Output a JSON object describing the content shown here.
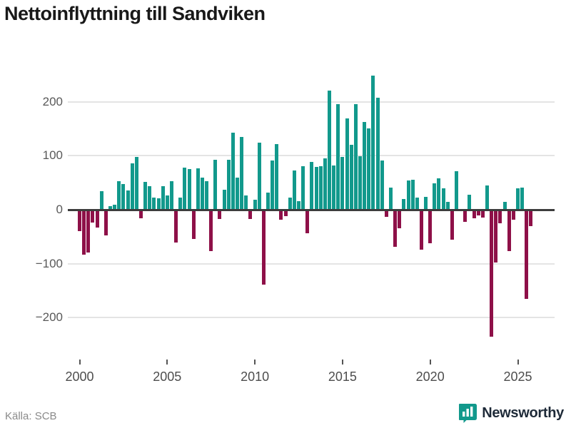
{
  "header": {
    "title": "Nettoinflyttning till Sandviken"
  },
  "footer": {
    "source": "Källa: SCB",
    "brand": "Newsworthy"
  },
  "chart_data": {
    "type": "bar",
    "title": "Nettoinflyttning till Sandviken",
    "xlabel": "",
    "ylabel": "",
    "frequency": "quarterly",
    "start_period": "2000Q1",
    "end_period": "2025Q4",
    "values": [
      -40,
      -83,
      -79,
      -24,
      -33,
      35,
      -48,
      7,
      9,
      53,
      48,
      36,
      86,
      98,
      -16,
      52,
      44,
      22,
      21,
      43,
      27,
      53,
      -61,
      23,
      78,
      75,
      -54,
      77,
      59,
      53,
      -77,
      92,
      -17,
      37,
      92,
      143,
      59,
      135,
      26,
      -17,
      18,
      124,
      -139,
      32,
      91,
      121,
      -18,
      -12,
      23,
      72,
      16,
      81,
      -43,
      88,
      79,
      81,
      95,
      220,
      82,
      196,
      98,
      169,
      120,
      195,
      99,
      163,
      150,
      249,
      207,
      91,
      -13,
      41,
      -69,
      -34,
      20,
      54,
      55,
      23,
      -74,
      24,
      -62,
      49,
      58,
      40,
      14,
      -55,
      71,
      0,
      -22,
      28,
      -16,
      -11,
      -15,
      45,
      -235,
      -98,
      -25,
      14,
      -76,
      -18,
      40,
      41,
      -165,
      -30
    ],
    "x_tick_years": [
      2000,
      2005,
      2010,
      2015,
      2020,
      2025
    ],
    "x_tick_labels": [
      "2000",
      "2005",
      "2010",
      "2015",
      "2020",
      "2025"
    ],
    "y_ticks": [
      200,
      100,
      0,
      -100,
      -200
    ],
    "y_tick_labels": [
      "200",
      "100",
      "0",
      "−100",
      "−200"
    ],
    "ylim": [
      -260,
      265
    ],
    "grid": "horizontal",
    "legend": "none",
    "colors": {
      "positive": "#12998c",
      "negative": "#8e1048",
      "zero_line": "#3d3d3d",
      "grid_line": "#e4e4e4",
      "brand_teal": "#12998c"
    }
  }
}
